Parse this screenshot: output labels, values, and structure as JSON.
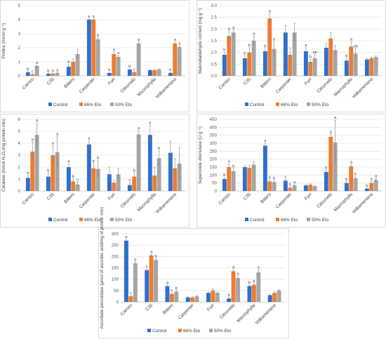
{
  "chart_data": [
    {
      "type": "bar",
      "ylabel": "Proline (mmol g⁻¹)",
      "ylim": [
        0,
        5
      ],
      "yticks": [
        "0",
        "1",
        "2",
        "3",
        "4",
        "5"
      ],
      "categories": [
        "Carrizo",
        "C35",
        "Bitters",
        "Carpenter",
        "Furr",
        "Citrumelo",
        "Macrophylla",
        "Volkameriana"
      ],
      "series": [
        {
          "name": "Control",
          "color": "#2e6fcf",
          "values": [
            0.25,
            0.15,
            0.65,
            4.0,
            0.2,
            0.45,
            0.4,
            0.2
          ],
          "errors": [
            0.05,
            0.03,
            0.15,
            0.05,
            0.05,
            0.05,
            0.03,
            0.05
          ],
          "labels": [
            "b",
            "b",
            "b",
            "a",
            "b",
            "b",
            "",
            "b"
          ]
        },
        {
          "name": "66% Eto",
          "color": "#ed7d31",
          "values": [
            0.1,
            0.15,
            1.0,
            4.0,
            1.55,
            0.25,
            0.4,
            2.3
          ],
          "errors": [
            0.03,
            0.03,
            0.2,
            0.05,
            0.15,
            0.03,
            0.04,
            0.1
          ],
          "labels": [
            "c",
            "b",
            "",
            "a",
            "a",
            "c",
            "",
            "a"
          ]
        },
        {
          "name": "50% Eto",
          "color": "#a5a5a5",
          "values": [
            0.7,
            0.2,
            1.55,
            2.6,
            1.35,
            2.3,
            0.45,
            2.05
          ],
          "errors": [
            0.05,
            0.03,
            0.35,
            0.1,
            0.1,
            0.1,
            0.03,
            0.08
          ],
          "labels": [
            "a",
            "a",
            "",
            "b",
            "a",
            "a",
            "",
            "a"
          ]
        }
      ],
      "legend": "bottom"
    },
    {
      "type": "bar",
      "ylabel": "Malondialdehyde content (mg g⁻¹)",
      "ylim": [
        0,
        3
      ],
      "yticks": [
        "0.0",
        "0.5",
        "1.0",
        "1.5",
        "2.0",
        "2.5",
        "3.0"
      ],
      "categories": [
        "Carrizo",
        "C35",
        "Bitters",
        "Carpenter",
        "Furr",
        "Citrumelo",
        "Macrophylla",
        "Volkameriana"
      ],
      "series": [
        {
          "name": "Control",
          "color": "#2e6fcf",
          "values": [
            0.9,
            0.75,
            1.05,
            1.85,
            1.05,
            1.2,
            0.65,
            0.7
          ],
          "errors": [
            0.1,
            0.1,
            0.1,
            0.3,
            0.15,
            0.2,
            0.1,
            0.05
          ],
          "labels": [
            "b",
            "b",
            "b",
            "",
            "a",
            "",
            "b",
            ""
          ]
        },
        {
          "name": "66% Eto",
          "color": "#ed7d31",
          "values": [
            1.7,
            1.0,
            2.45,
            0.9,
            0.6,
            1.6,
            1.25,
            0.75
          ],
          "errors": [
            0.2,
            0.2,
            0.2,
            0.3,
            0.1,
            0.25,
            0.2,
            0.05
          ],
          "labels": [
            "a",
            "b",
            "a",
            "",
            "b",
            "",
            "a",
            ""
          ]
        },
        {
          "name": "50% Eto",
          "color": "#a5a5a5",
          "values": [
            1.85,
            1.5,
            1.15,
            1.85,
            0.75,
            1.1,
            0.95,
            0.8
          ],
          "errors": [
            0.1,
            0.2,
            0.3,
            0.4,
            0.15,
            0.2,
            0.2,
            0.05
          ],
          "labels": [
            "a",
            "a",
            "b",
            "",
            "ab",
            "",
            "ab",
            ""
          ]
        }
      ],
      "legend": "bottom"
    },
    {
      "type": "bar",
      "ylabel": "Catalase (mmol H₂O₂/mg protein min)",
      "ylim": [
        0,
        6
      ],
      "yticks": [
        "0",
        "1",
        "2",
        "3",
        "4",
        "5",
        "6"
      ],
      "categories": [
        "Carrizo",
        "C35",
        "Bitters",
        "Carpenter",
        "Furr",
        "Citrumelo",
        "Macrophylla",
        "Volkameriana"
      ],
      "series": [
        {
          "name": "Control",
          "color": "#2e6fcf",
          "values": [
            1.1,
            1.2,
            2.0,
            3.9,
            1.4,
            0.5,
            4.7,
            3.2
          ],
          "errors": [
            0.2,
            0.3,
            0.3,
            0.3,
            0.6,
            0.2,
            0.8,
            1.0
          ],
          "labels": [
            "b",
            "b",
            "a",
            "a",
            "",
            "c",
            "a",
            ""
          ]
        },
        {
          "name": "66% Eto",
          "color": "#ed7d31",
          "values": [
            3.3,
            3.0,
            0.8,
            1.9,
            0.7,
            1.2,
            1.3,
            1.9
          ],
          "errors": [
            0.8,
            0.8,
            0.2,
            0.4,
            0.2,
            0.3,
            0.4,
            0.8
          ],
          "labels": [
            "a",
            "a",
            "b",
            "b",
            "",
            "b",
            "c",
            ""
          ]
        },
        {
          "name": "50% Eto",
          "color": "#a5a5a5",
          "values": [
            4.7,
            3.25,
            0.55,
            1.85,
            1.4,
            4.75,
            2.75,
            2.3
          ],
          "errors": [
            1.0,
            1.3,
            0.2,
            0.7,
            0.5,
            0.3,
            0.6,
            1.3
          ],
          "labels": [
            "a",
            "a",
            "c",
            "b",
            "",
            "a",
            "b",
            ""
          ]
        }
      ],
      "legend": "bottom"
    },
    {
      "type": "bar",
      "ylabel": "Superoxide dismutase (U g⁻¹)",
      "ylim": [
        0,
        450
      ],
      "yticks": [
        "0",
        "50",
        "100",
        "150",
        "200",
        "250",
        "300",
        "350",
        "400",
        "450"
      ],
      "categories": [
        "Carrizo",
        "C35",
        "Bitters",
        "Carpenter",
        "Furr",
        "Citrumelo",
        "Macrophylla",
        "Volkameriana"
      ],
      "series": [
        {
          "name": "Control",
          "color": "#2e6fcf",
          "values": [
            75,
            150,
            285,
            65,
            35,
            120,
            50,
            15
          ],
          "errors": [
            10,
            10,
            15,
            8,
            5,
            10,
            8,
            3
          ],
          "labels": [
            "b",
            "",
            "a",
            "c",
            "",
            "b",
            "b",
            "b"
          ]
        },
        {
          "name": "66% Eto",
          "color": "#ed7d31",
          "values": [
            150,
            145,
            60,
            20,
            40,
            340,
            155,
            50
          ],
          "errors": [
            20,
            15,
            8,
            5,
            5,
            15,
            10,
            10
          ],
          "labels": [
            "a",
            "",
            "b",
            "b",
            "",
            "a",
            "a",
            "a"
          ]
        },
        {
          "name": "50% Eto",
          "color": "#a5a5a5",
          "values": [
            125,
            165,
            55,
            35,
            30,
            305,
            80,
            70
          ],
          "errors": [
            15,
            20,
            8,
            5,
            5,
            140,
            10,
            8
          ],
          "labels": [
            "b",
            "",
            "b",
            "a",
            "",
            "a",
            "b",
            "a"
          ]
        }
      ],
      "legend": "bottom"
    },
    {
      "type": "bar",
      "ylabel": "Ascorbate peroxidase (μmol of ascorbic acid/mg of protein min)",
      "ylim": [
        0,
        300
      ],
      "yticks": [
        "0",
        "50",
        "100",
        "150",
        "200",
        "250",
        "300"
      ],
      "categories": [
        "Carrizo",
        "C35",
        "Bitters",
        "Carpenter",
        "Furr",
        "Citrumelo",
        "Macrophylla",
        "Volkameriana"
      ],
      "series": [
        {
          "name": "Control",
          "color": "#2e6fcf",
          "values": [
            270,
            140,
            70,
            20,
            40,
            15,
            70,
            30
          ],
          "errors": [
            5,
            5,
            5,
            3,
            5,
            3,
            5,
            3
          ],
          "labels": [
            "a",
            "c",
            "a",
            "",
            "",
            "b",
            "b",
            ""
          ]
        },
        {
          "name": "66% Eto",
          "color": "#ed7d31",
          "values": [
            25,
            205,
            35,
            20,
            50,
            135,
            75,
            40
          ],
          "errors": [
            3,
            5,
            5,
            3,
            8,
            8,
            5,
            5
          ],
          "labels": [
            "c",
            "a",
            "c",
            "",
            "",
            "a",
            "b",
            ""
          ]
        },
        {
          "name": "50% Eto",
          "color": "#a5a5a5",
          "values": [
            170,
            185,
            45,
            25,
            40,
            105,
            130,
            50
          ],
          "errors": [
            5,
            5,
            5,
            3,
            5,
            8,
            10,
            5
          ],
          "labels": [
            "b",
            "b",
            "b",
            "",
            "",
            "a",
            "a",
            ""
          ]
        }
      ],
      "legend": "bottom"
    }
  ]
}
